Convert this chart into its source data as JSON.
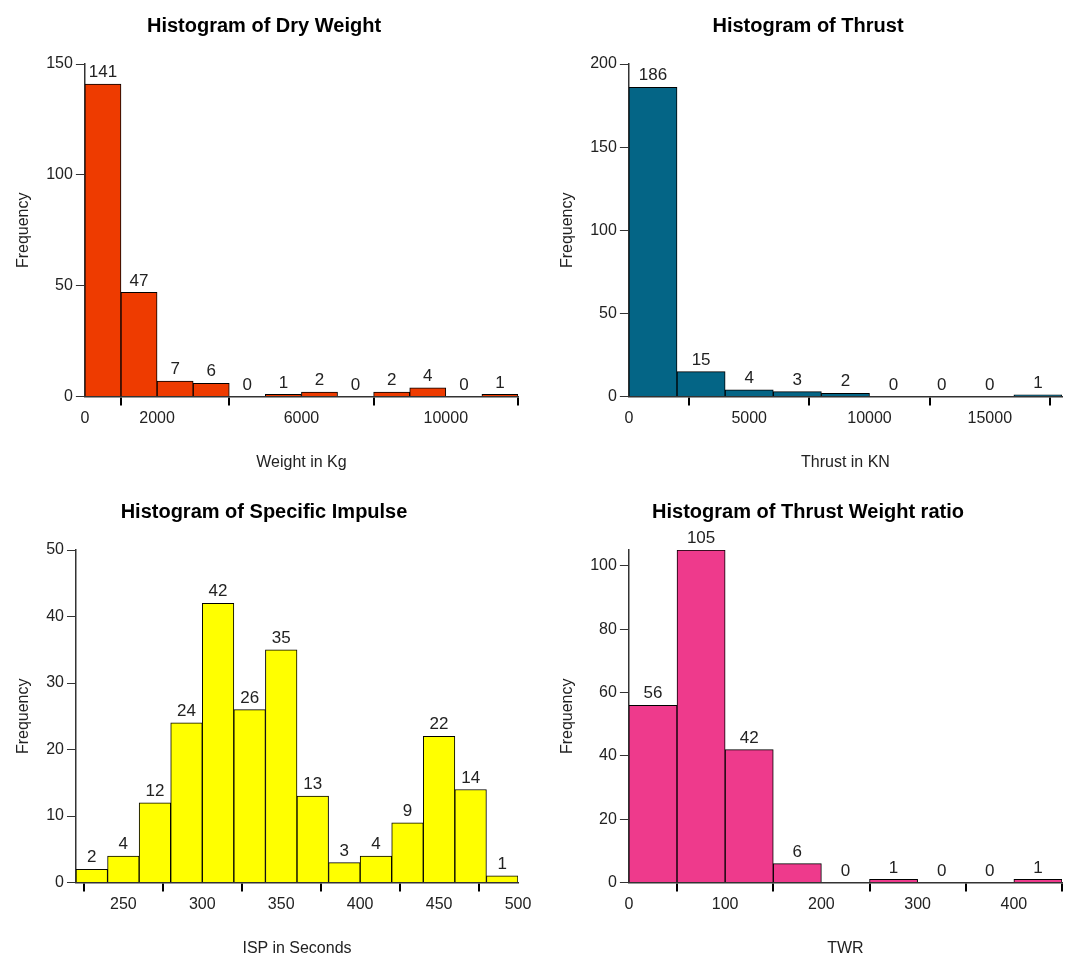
{
  "chart_data": [
    {
      "type": "histogram",
      "title": "Histogram of Dry Weight",
      "xlabel": "Weight in Kg",
      "ylabel": "Frequency",
      "color": "#ee3b00",
      "bins": [
        0,
        1000,
        2000,
        3000,
        4000,
        5000,
        6000,
        7000,
        8000,
        9000,
        10000,
        11000,
        12000
      ],
      "values": [
        141,
        47,
        7,
        6,
        0,
        1,
        2,
        0,
        2,
        4,
        0,
        1
      ],
      "xlim": [
        0,
        12000
      ],
      "xticks": [
        0,
        2000,
        6000,
        10000
      ],
      "ylim": [
        0,
        150
      ],
      "yticks": [
        0,
        50,
        100,
        150
      ],
      "data_labels": true
    },
    {
      "type": "histogram",
      "title": "Histogram of Thrust",
      "xlabel": "Thrust in KN",
      "ylabel": "Frequency",
      "color": "#046586",
      "bins": [
        0,
        2000,
        4000,
        6000,
        8000,
        10000,
        12000,
        14000,
        16000,
        18000
      ],
      "values": [
        186,
        15,
        4,
        3,
        2,
        0,
        0,
        0,
        1
      ],
      "xlim": [
        0,
        18000
      ],
      "xticks": [
        0,
        5000,
        10000,
        15000
      ],
      "ylim": [
        0,
        200
      ],
      "yticks": [
        0,
        50,
        100,
        150,
        200
      ],
      "data_labels": true
    },
    {
      "type": "histogram",
      "title": "Histogram of Specific Impulse",
      "xlabel": "ISP in Seconds",
      "ylabel": "Frequency",
      "color": "#ffff00",
      "bins": [
        220,
        240,
        260,
        280,
        300,
        320,
        340,
        360,
        380,
        400,
        420,
        440,
        460,
        480,
        500
      ],
      "values": [
        2,
        4,
        12,
        24,
        42,
        26,
        35,
        13,
        3,
        4,
        9,
        22,
        14,
        1
      ],
      "xlim": [
        220,
        500
      ],
      "xticks": [
        250,
        300,
        350,
        400,
        450,
        500
      ],
      "ylim": [
        0,
        50
      ],
      "yticks": [
        0,
        10,
        20,
        30,
        40,
        50
      ],
      "data_labels": true
    },
    {
      "type": "histogram",
      "title": "Histogram of Thrust Weight ratio",
      "xlabel": "TWR",
      "ylabel": "Frequency",
      "color": "#ee3a8c",
      "bins": [
        0,
        50,
        100,
        150,
        200,
        250,
        300,
        350,
        400,
        450
      ],
      "values": [
        56,
        105,
        42,
        6,
        0,
        1,
        0,
        0,
        1
      ],
      "xlim": [
        0,
        450
      ],
      "xticks": [
        0,
        100,
        200,
        300,
        400
      ],
      "ylim": [
        0,
        105
      ],
      "yticks": [
        0,
        20,
        40,
        60,
        80,
        100
      ],
      "data_labels": true
    }
  ]
}
